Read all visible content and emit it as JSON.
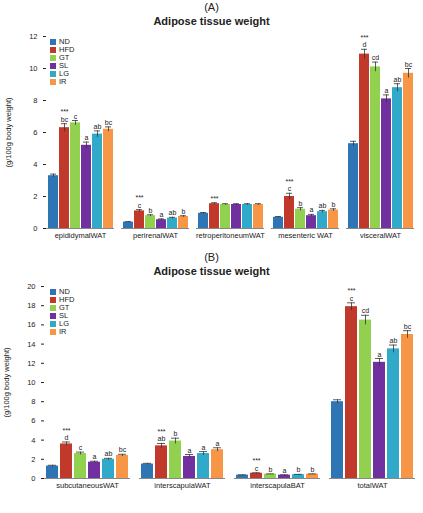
{
  "chart_data": [
    {
      "type": "bar",
      "panel": "(A)",
      "title": "Adipose tissue weight",
      "y_label": "(g/100g body weight)",
      "categories": [
        "epididymalWAT",
        "perirenalWAT",
        "retroperitoneumWAT",
        "mesenteric WAT",
        "visceralWAT"
      ],
      "series": [
        {
          "name": "ND",
          "color": "#2e75b6",
          "values": [
            3.3,
            0.4,
            0.95,
            0.7,
            5.3
          ],
          "errors": [
            0.1,
            0.03,
            0.05,
            0.05,
            0.15
          ]
        },
        {
          "name": "HFD",
          "color": "#c0392b",
          "values": [
            6.3,
            1.1,
            1.55,
            2.0,
            10.9
          ],
          "errors": [
            0.25,
            0.08,
            0.06,
            0.2,
            0.3
          ],
          "significance": [
            "***",
            "***",
            "***",
            "***",
            "***"
          ],
          "letters": [
            "bc",
            "c",
            null,
            "c",
            "d"
          ]
        },
        {
          "name": "GT",
          "color": "#92d050",
          "values": [
            6.6,
            0.8,
            1.5,
            1.2,
            10.1
          ],
          "errors": [
            0.15,
            0.06,
            0.05,
            0.1,
            0.3
          ],
          "letters": [
            "c",
            "b",
            null,
            "b",
            "cd"
          ]
        },
        {
          "name": "SL",
          "color": "#7030a0",
          "values": [
            5.2,
            0.55,
            1.5,
            0.8,
            8.1
          ],
          "errors": [
            0.2,
            0.05,
            0.05,
            0.08,
            0.25
          ],
          "letters": [
            "a",
            "a",
            null,
            "a",
            "a"
          ]
        },
        {
          "name": "LG",
          "color": "#31a9c9",
          "values": [
            5.9,
            0.65,
            1.5,
            1.05,
            8.8
          ],
          "errors": [
            0.2,
            0.05,
            0.05,
            0.08,
            0.25
          ],
          "letters": [
            "ab",
            "ab",
            null,
            "ab",
            "ab"
          ]
        },
        {
          "name": "IR",
          "color": "#f79646",
          "values": [
            6.2,
            0.75,
            1.5,
            1.15,
            9.7
          ],
          "errors": [
            0.15,
            0.05,
            0.05,
            0.08,
            0.3
          ],
          "letters": [
            "bc",
            "b",
            null,
            "b",
            "bc"
          ]
        }
      ],
      "ylim": [
        0,
        12
      ],
      "yticks": [
        0,
        2,
        4,
        6,
        8,
        10,
        12
      ],
      "grid": false,
      "legend": "top-left"
    },
    {
      "type": "bar",
      "panel": "(B)",
      "title": "Adipose tissue weight",
      "y_label": "(g/100g body weight)",
      "categories": [
        "subcutaneousWAT",
        "interscapulaWAT",
        "interscapulaBAT",
        "totalWAT"
      ],
      "series": [
        {
          "name": "ND",
          "color": "#2e75b6",
          "values": [
            1.3,
            1.5,
            0.35,
            8.0
          ],
          "errors": [
            0.08,
            0.08,
            0.03,
            0.2
          ]
        },
        {
          "name": "HFD",
          "color": "#c0392b",
          "values": [
            3.6,
            3.4,
            0.55,
            17.9
          ],
          "errors": [
            0.2,
            0.25,
            0.04,
            0.4
          ],
          "significance": [
            "***",
            "***",
            "***",
            "***"
          ],
          "letters": [
            "d",
            "ab",
            "c",
            "c"
          ]
        },
        {
          "name": "GT",
          "color": "#92d050",
          "values": [
            2.6,
            3.9,
            0.45,
            16.5
          ],
          "errors": [
            0.15,
            0.3,
            0.03,
            0.5
          ],
          "letters": [
            "c",
            "b",
            "b",
            "cd"
          ]
        },
        {
          "name": "SL",
          "color": "#7030a0",
          "values": [
            1.7,
            2.3,
            0.35,
            12.1
          ],
          "errors": [
            0.1,
            0.2,
            0.03,
            0.4
          ],
          "letters": [
            "a",
            "a",
            "a",
            "a"
          ]
        },
        {
          "name": "LG",
          "color": "#31a9c9",
          "values": [
            2.0,
            2.6,
            0.4,
            13.5
          ],
          "errors": [
            0.1,
            0.2,
            0.03,
            0.4
          ],
          "letters": [
            "ab",
            "a",
            "b",
            "ab"
          ]
        },
        {
          "name": "IR",
          "color": "#f79646",
          "values": [
            2.4,
            3.0,
            0.45,
            15.0
          ],
          "errors": [
            0.12,
            0.2,
            0.03,
            0.4
          ],
          "letters": [
            "bc",
            "a",
            "b",
            "bc"
          ]
        }
      ],
      "ylim": [
        0,
        20
      ],
      "yticks": [
        0,
        2,
        4,
        6,
        8,
        10,
        12,
        14,
        16,
        18,
        20
      ],
      "grid": false,
      "legend": "top-left"
    }
  ]
}
